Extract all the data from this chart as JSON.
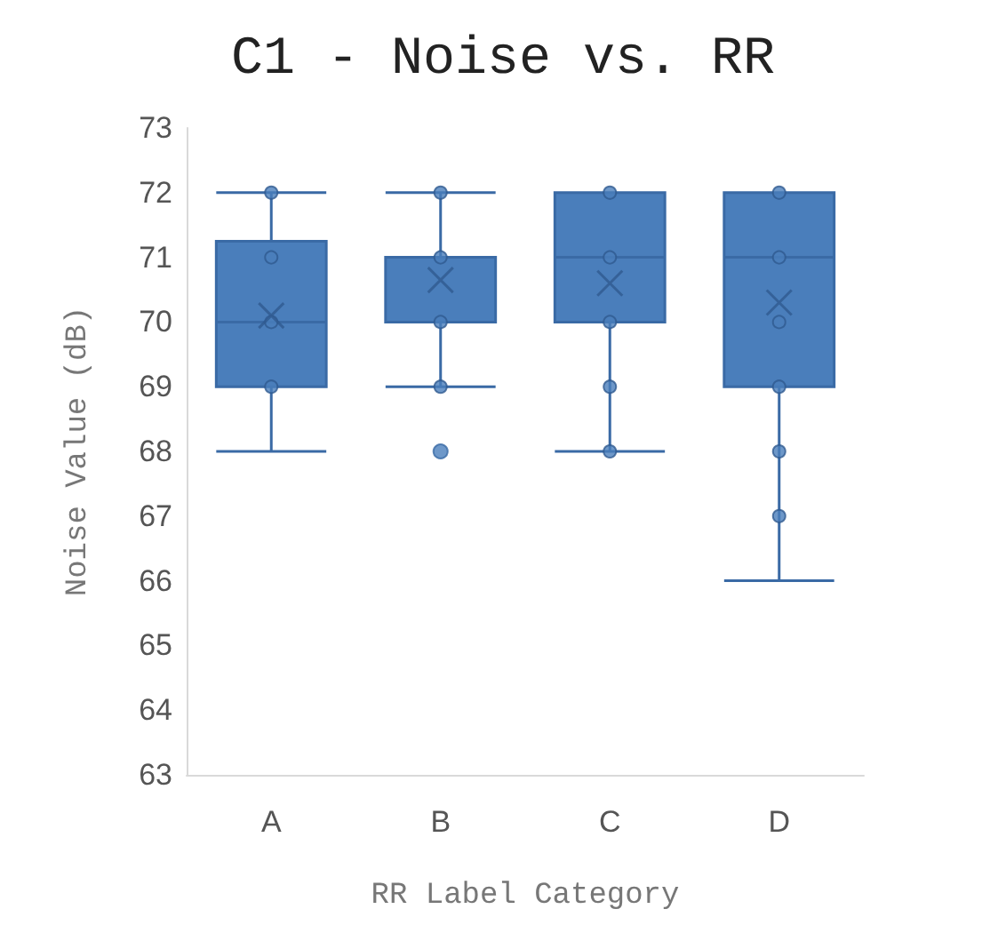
{
  "chart_data": {
    "type": "box",
    "title": "C1 - Noise vs. RR",
    "xlabel": "RR Label Category",
    "ylabel": "Noise Value (dB)",
    "categories": [
      "A",
      "B",
      "C",
      "D"
    ],
    "color": "#4a7ebb",
    "boxes": [
      {
        "low": 68,
        "q1": 69,
        "median": 70,
        "q3": 71.25,
        "high": 72,
        "mean": 70.1
      },
      {
        "low": 69,
        "q1": 70,
        "median": 70,
        "q3": 71,
        "high": 72,
        "mean": 70.65,
        "outliers": [
          68
        ]
      },
      {
        "low": 68,
        "q1": 70,
        "median": 71,
        "q3": 72,
        "high": 72,
        "mean": 70.6
      },
      {
        "low": 66,
        "q1": 69,
        "median": 71,
        "q3": 72,
        "high": 72,
        "mean": 70.3
      }
    ],
    "series": [
      {
        "type": "scatter",
        "color": "#4a7ebb",
        "x": [
          "A",
          "A",
          "A",
          "A",
          "B",
          "B",
          "B",
          "B",
          "C",
          "C",
          "C",
          "C",
          "C",
          "D",
          "D",
          "D",
          "D",
          "D",
          "D"
        ],
        "values": [
          72,
          71,
          70,
          69,
          72,
          71,
          70,
          69,
          72,
          71,
          70,
          69,
          68,
          72,
          71,
          70,
          69,
          68,
          67
        ]
      }
    ],
    "marker": "circle",
    "ylim": [
      63,
      73
    ],
    "yticks": [
      63,
      64,
      65,
      66,
      67,
      68,
      69,
      70,
      71,
      72,
      73
    ]
  }
}
